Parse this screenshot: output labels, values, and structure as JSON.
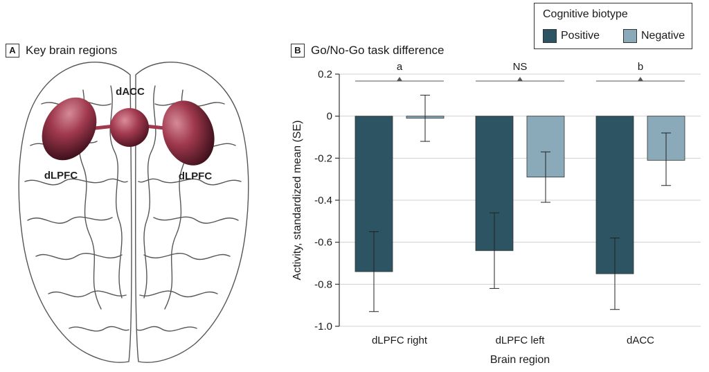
{
  "panel_a": {
    "letter": "A",
    "title": "Key brain regions",
    "labels": {
      "dacc": "dACC",
      "dlpfc_left": "dLPFC",
      "dlpfc_right": "dLPFC"
    }
  },
  "panel_b": {
    "letter": "B",
    "title": "Go/No-Go task difference"
  },
  "legend": {
    "title": "Cognitive biotype",
    "items": [
      {
        "label": "Positive",
        "color": "#2d5462"
      },
      {
        "label": "Negative",
        "color": "#8aaab9"
      }
    ]
  },
  "chart_data": {
    "type": "bar",
    "title": "Go/No-Go task difference",
    "xlabel": "Brain region",
    "ylabel": "Activity, standardized mean (SE)",
    "ylim": [
      -1.0,
      0.2
    ],
    "yticks": [
      0.2,
      0,
      -0.2,
      -0.4,
      -0.6,
      -0.8,
      -1.0
    ],
    "ytick_labels": [
      "0.2",
      "0",
      "-0.2",
      "-0.4",
      "-0.6",
      "-0.8",
      "-1.0"
    ],
    "grid": true,
    "categories": [
      "dLPFC right",
      "dLPFC left",
      "dACC"
    ],
    "series": [
      {
        "name": "Positive",
        "color": "#2d5462",
        "values": [
          -0.74,
          -0.64,
          -0.75
        ],
        "error_low": [
          -0.93,
          -0.82,
          -0.92
        ],
        "error_high": [
          -0.55,
          -0.46,
          -0.58
        ]
      },
      {
        "name": "Negative",
        "color": "#8aaab9",
        "values": [
          -0.01,
          -0.29,
          -0.21
        ],
        "error_low": [
          -0.12,
          -0.41,
          -0.33
        ],
        "error_high": [
          0.1,
          -0.17,
          -0.08
        ]
      }
    ],
    "annotations": [
      "a",
      "NS",
      "b"
    ]
  }
}
